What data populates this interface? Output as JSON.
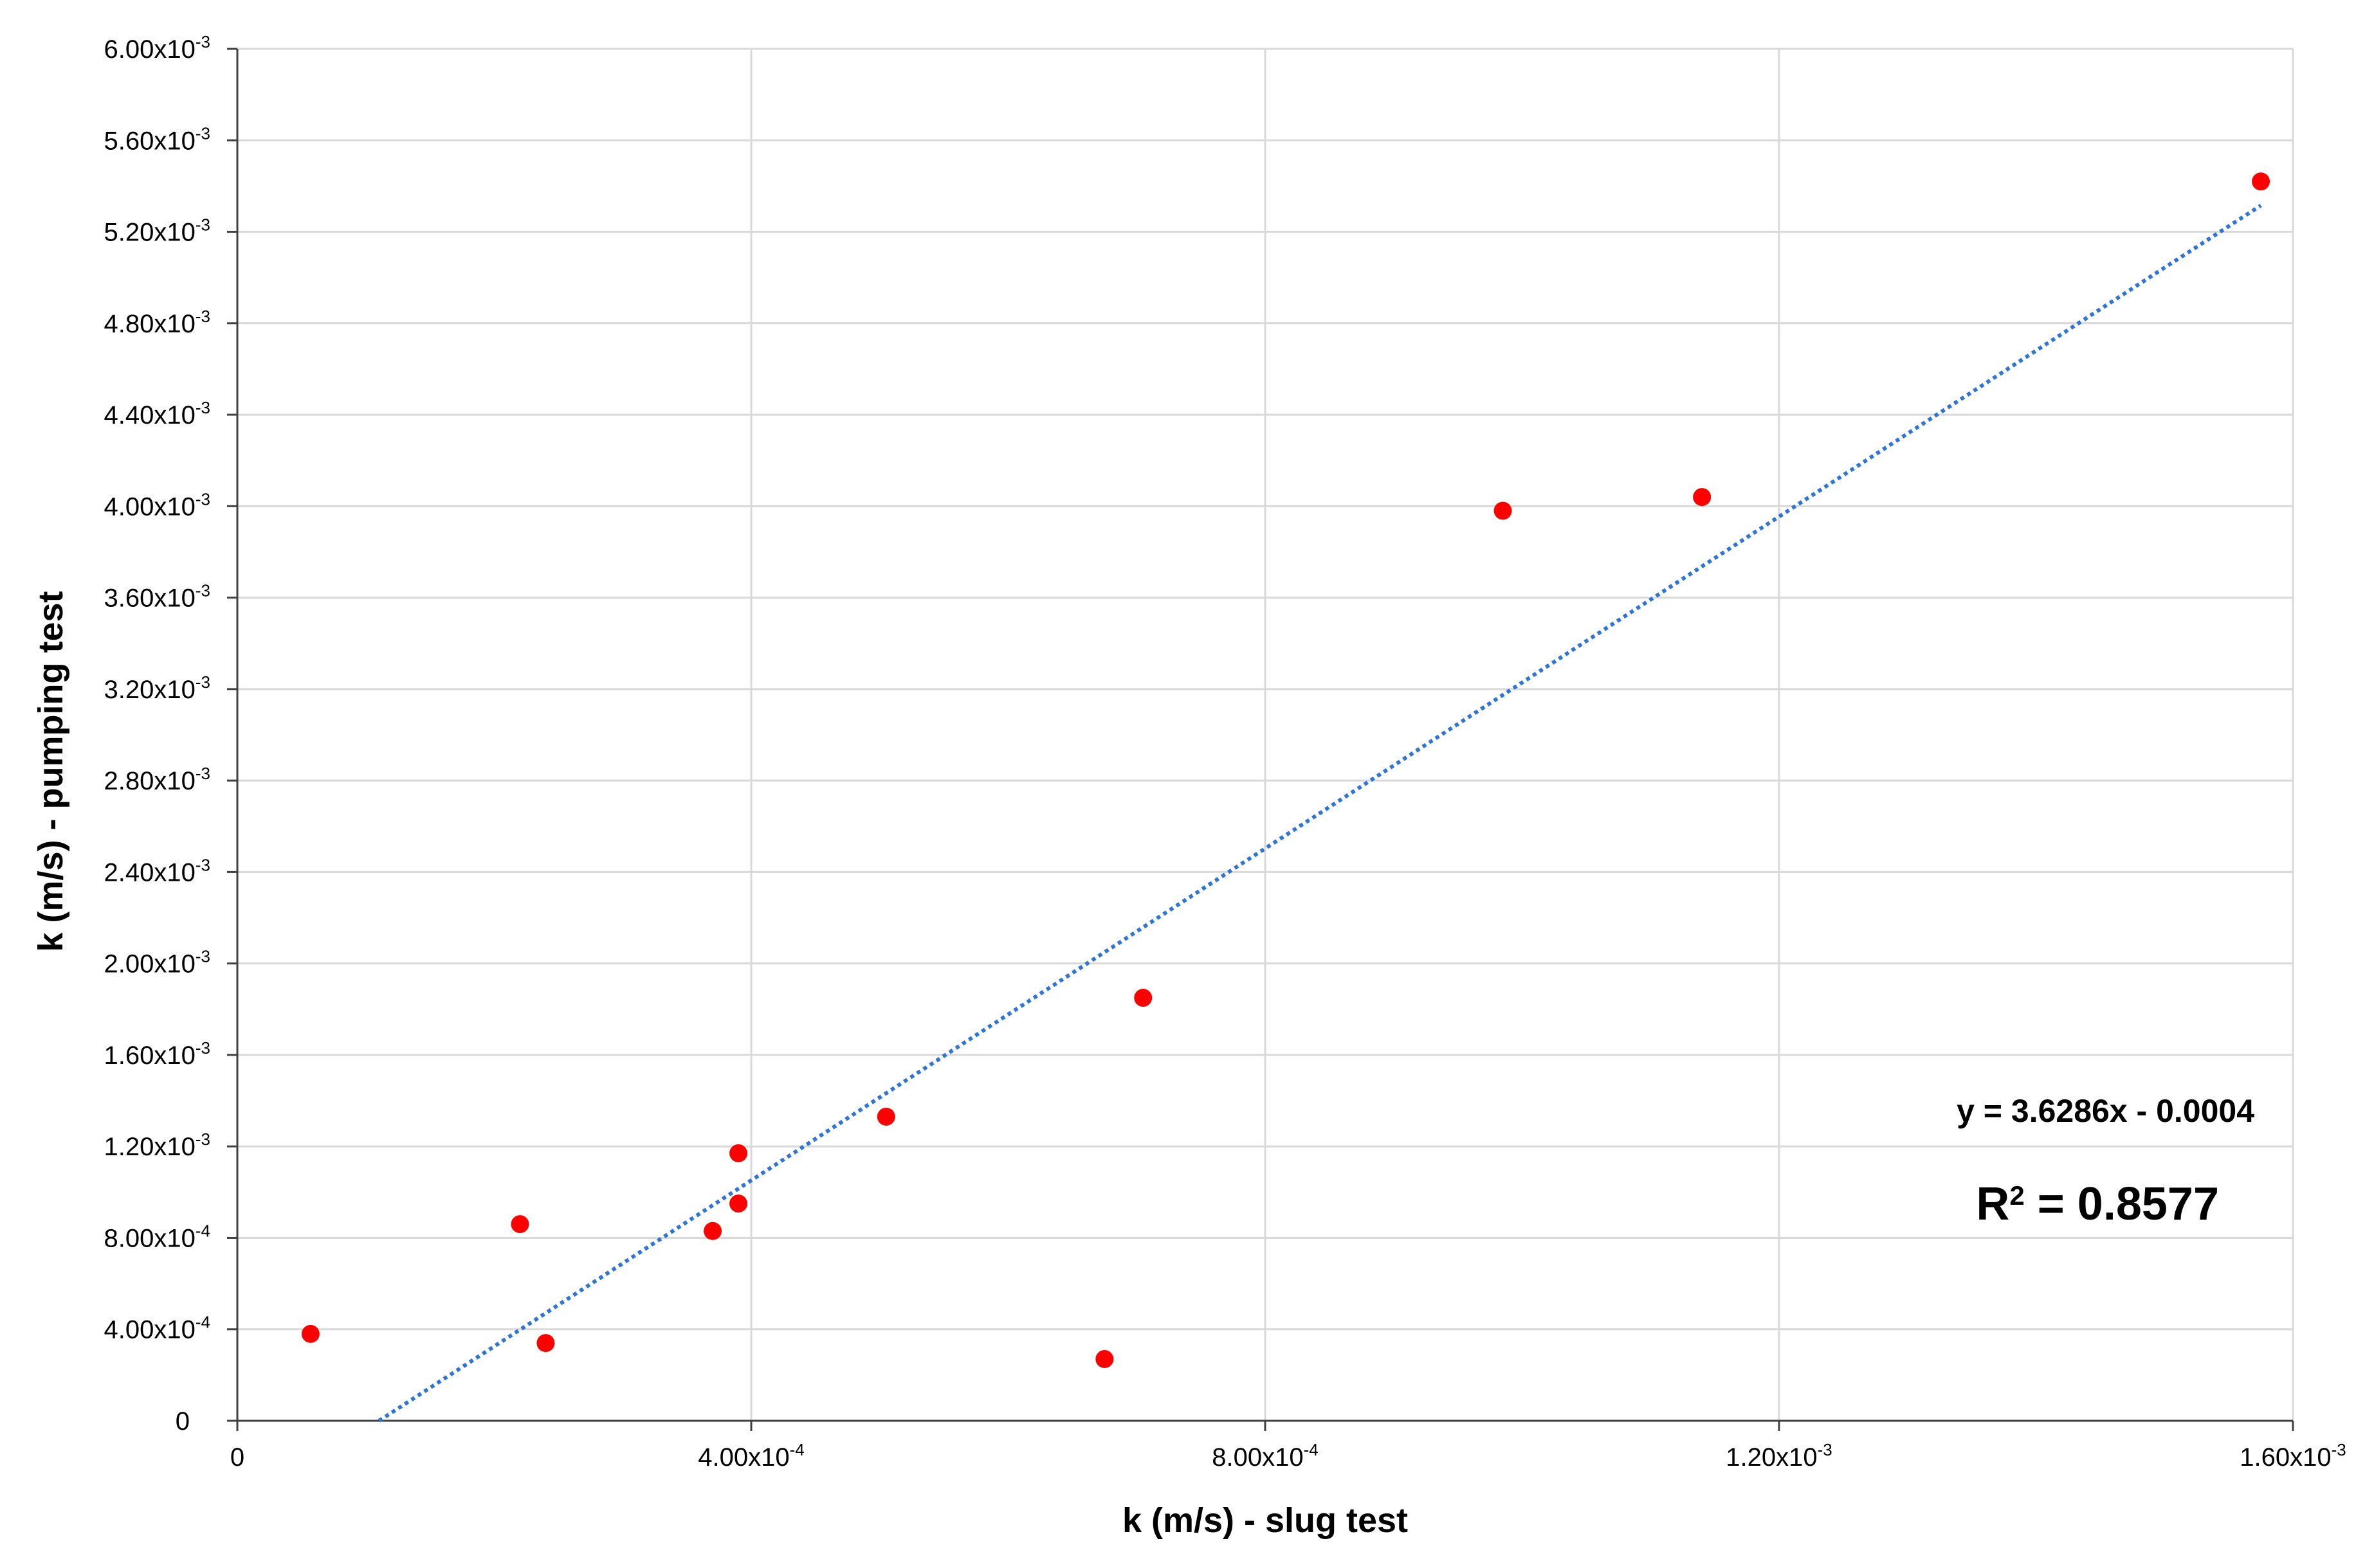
{
  "chart_data": {
    "type": "scatter",
    "title": "",
    "xlabel": "k (m/s) - slug test",
    "ylabel": "k (m/s) - pumping test",
    "xlim": [
      0,
      0.0016
    ],
    "ylim": [
      0,
      0.006
    ],
    "grid": true,
    "x_ticks": [
      {
        "value": 0,
        "mantissa": "0",
        "exp": ""
      },
      {
        "value": 0.0004,
        "mantissa": "4.00x10",
        "exp": "-4"
      },
      {
        "value": 0.0008,
        "mantissa": "8.00x10",
        "exp": "-4"
      },
      {
        "value": 0.0012,
        "mantissa": "1.20x10",
        "exp": "-3"
      },
      {
        "value": 0.0016,
        "mantissa": "1.60x10",
        "exp": "-3"
      }
    ],
    "y_ticks": [
      {
        "value": 0,
        "mantissa": "0",
        "exp": ""
      },
      {
        "value": 0.0004,
        "mantissa": "4.00x10",
        "exp": "-4"
      },
      {
        "value": 0.0008,
        "mantissa": "8.00x10",
        "exp": "-4"
      },
      {
        "value": 0.0012,
        "mantissa": "1.20x10",
        "exp": "-3"
      },
      {
        "value": 0.0016,
        "mantissa": "1.60x10",
        "exp": "-3"
      },
      {
        "value": 0.002,
        "mantissa": "2.00x10",
        "exp": "-3"
      },
      {
        "value": 0.0024,
        "mantissa": "2.40x10",
        "exp": "-3"
      },
      {
        "value": 0.0028,
        "mantissa": "2.80x10",
        "exp": "-3"
      },
      {
        "value": 0.0032,
        "mantissa": "3.20x10",
        "exp": "-3"
      },
      {
        "value": 0.0036,
        "mantissa": "3.60x10",
        "exp": "-3"
      },
      {
        "value": 0.004,
        "mantissa": "4.00x10",
        "exp": "-3"
      },
      {
        "value": 0.0044,
        "mantissa": "4.40x10",
        "exp": "-3"
      },
      {
        "value": 0.0048,
        "mantissa": "4.80x10",
        "exp": "-3"
      },
      {
        "value": 0.0052,
        "mantissa": "5.20x10",
        "exp": "-3"
      },
      {
        "value": 0.0056,
        "mantissa": "5.60x10",
        "exp": "-3"
      },
      {
        "value": 0.006,
        "mantissa": "6.00x10",
        "exp": "-3"
      }
    ],
    "series": [
      {
        "marker_color": "#ff0000",
        "points": [
          {
            "x": 5.7e-05,
            "y": 0.00038
          },
          {
            "x": 0.00022,
            "y": 0.00086
          },
          {
            "x": 0.00024,
            "y": 0.00034
          },
          {
            "x": 0.00037,
            "y": 0.00083
          },
          {
            "x": 0.00039,
            "y": 0.00117
          },
          {
            "x": 0.00039,
            "y": 0.00095
          },
          {
            "x": 0.000505,
            "y": 0.00133
          },
          {
            "x": 0.000675,
            "y": 0.00027
          },
          {
            "x": 0.000705,
            "y": 0.00185
          },
          {
            "x": 0.000985,
            "y": 0.00398
          },
          {
            "x": 0.00114,
            "y": 0.00404
          },
          {
            "x": 0.001575,
            "y": 0.00542
          }
        ]
      }
    ],
    "trendline": {
      "type": "linear",
      "slope": 3.6286,
      "intercept": -0.0004,
      "color": "#2e75d6",
      "equation_text": "y = 3.6286x - 0.0004",
      "r2_prefix": "R",
      "r2_sup": "2",
      "r2_value_text": " = 0.8577"
    }
  }
}
